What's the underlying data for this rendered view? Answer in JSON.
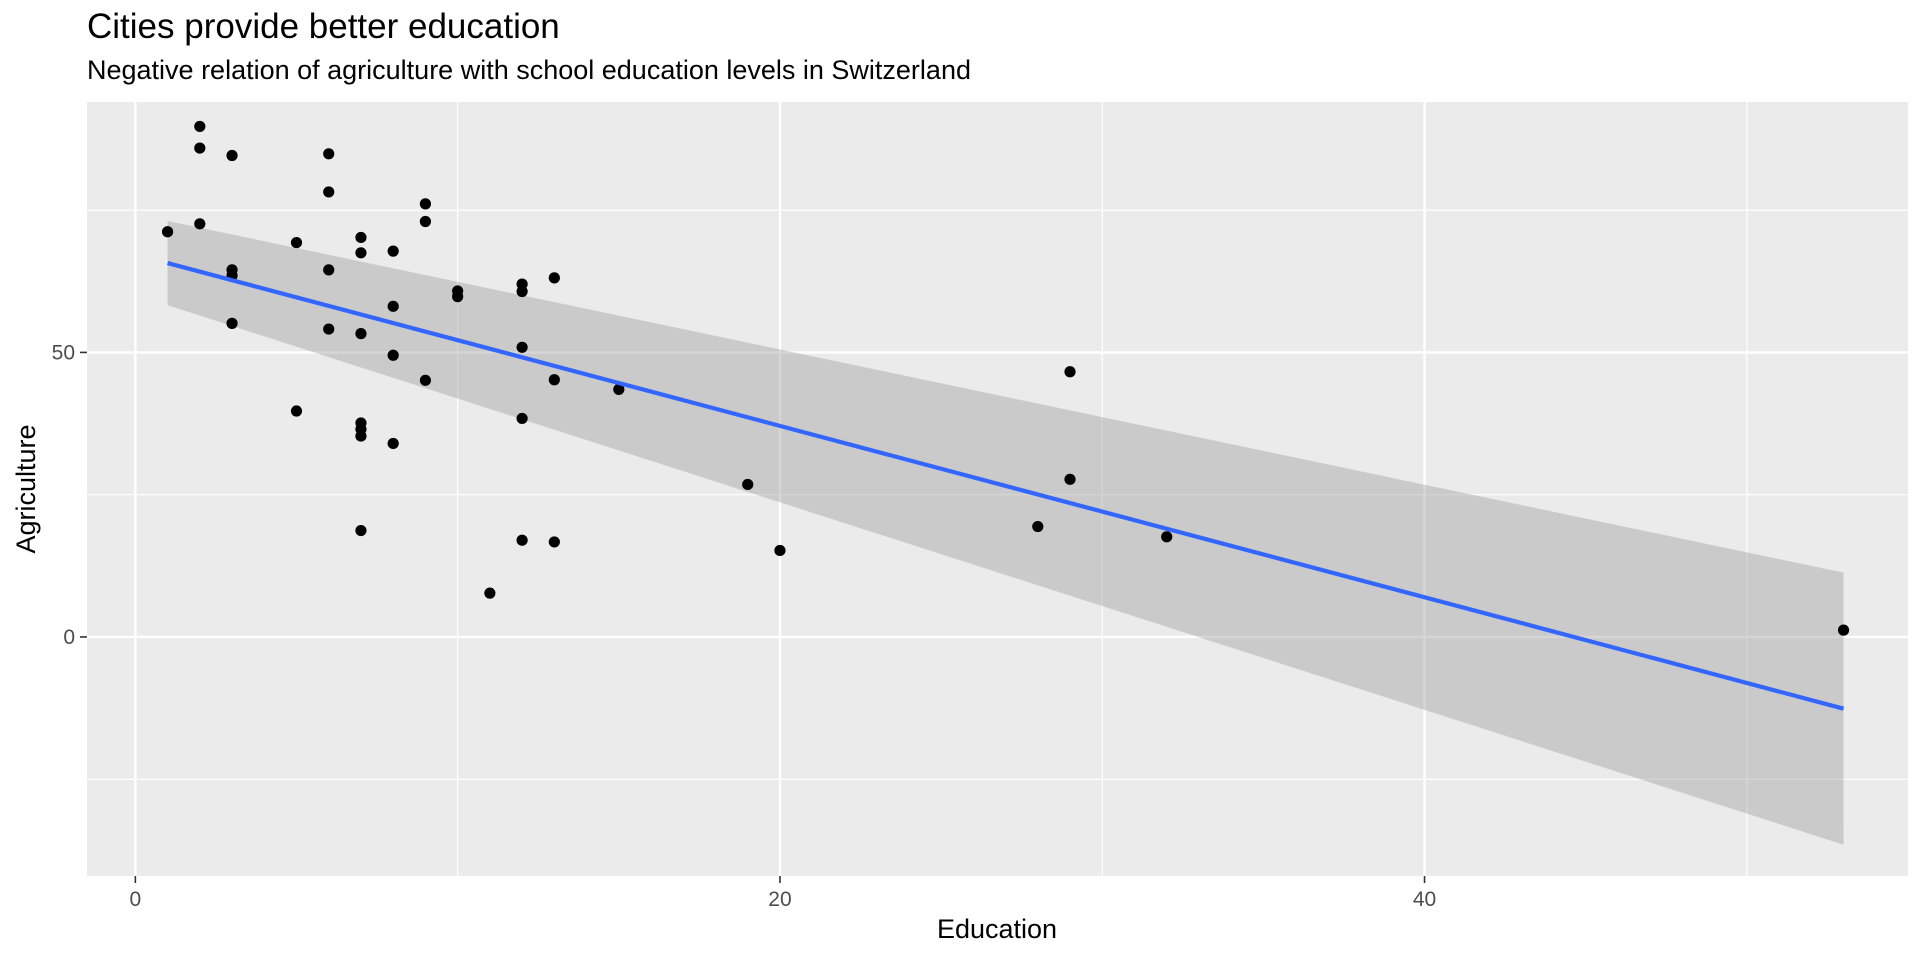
{
  "chart_data": {
    "type": "scatter",
    "title": "Cities provide better education",
    "subtitle": "Negative relation of agriculture with school education levels in Switzerland",
    "xlabel": "Education",
    "ylabel": "Agriculture",
    "xlim": [
      -1.5,
      55.0
    ],
    "ylim": [
      -42,
      94
    ],
    "x_ticks": [
      0,
      20,
      40
    ],
    "x_minor_ticks": [
      10,
      30,
      50
    ],
    "y_ticks": [
      0,
      50
    ],
    "y_minor_ticks": [
      -25,
      25,
      75
    ],
    "grid": true,
    "legend": "none",
    "points": [
      {
        "x": 12,
        "y": 17.0
      },
      {
        "x": 9,
        "y": 45.1
      },
      {
        "x": 5,
        "y": 39.7
      },
      {
        "x": 7,
        "y": 36.5
      },
      {
        "x": 15,
        "y": 43.5
      },
      {
        "x": 7,
        "y": 35.3
      },
      {
        "x": 7,
        "y": 70.2
      },
      {
        "x": 8,
        "y": 67.8
      },
      {
        "x": 7,
        "y": 53.3
      },
      {
        "x": 13,
        "y": 45.2
      },
      {
        "x": 6,
        "y": 64.5
      },
      {
        "x": 12,
        "y": 62.0
      },
      {
        "x": 7,
        "y": 67.5
      },
      {
        "x": 12,
        "y": 60.7
      },
      {
        "x": 5,
        "y": 69.3
      },
      {
        "x": 2,
        "y": 72.6
      },
      {
        "x": 8,
        "y": 34.0
      },
      {
        "x": 28,
        "y": 19.4
      },
      {
        "x": 20,
        "y": 15.2
      },
      {
        "x": 9,
        "y": 73.0
      },
      {
        "x": 10,
        "y": 59.8
      },
      {
        "x": 3,
        "y": 55.1
      },
      {
        "x": 12,
        "y": 50.9
      },
      {
        "x": 6,
        "y": 54.1
      },
      {
        "x": 1,
        "y": 71.2
      },
      {
        "x": 8,
        "y": 58.1
      },
      {
        "x": 3,
        "y": 63.5
      },
      {
        "x": 10,
        "y": 60.8
      },
      {
        "x": 19,
        "y": 26.8
      },
      {
        "x": 8,
        "y": 49.5
      },
      {
        "x": 2,
        "y": 85.9
      },
      {
        "x": 6,
        "y": 84.9
      },
      {
        "x": 2,
        "y": 89.7
      },
      {
        "x": 6,
        "y": 78.2
      },
      {
        "x": 9,
        "y": 76.1
      },
      {
        "x": 3,
        "y": 84.6
      },
      {
        "x": 3,
        "y": 64.5
      },
      {
        "x": 7,
        "y": 18.7
      },
      {
        "x": 13,
        "y": 16.7
      },
      {
        "x": 12,
        "y": 38.4
      },
      {
        "x": 11,
        "y": 7.7
      },
      {
        "x": 13,
        "y": 63.1
      },
      {
        "x": 32,
        "y": 17.6
      },
      {
        "x": 7,
        "y": 37.6
      },
      {
        "x": 53,
        "y": 1.2
      },
      {
        "x": 29,
        "y": 46.6
      },
      {
        "x": 29,
        "y": 27.7
      }
    ],
    "fit": {
      "method": "lm",
      "x": [
        1,
        53
      ],
      "y": [
        65.7,
        -12.6
      ],
      "ci_lower": [
        58.3,
        -36.5
      ],
      "ci_upper": [
        73.1,
        11.3
      ]
    },
    "colors": {
      "panel": "#ebebeb",
      "grid": "#ffffff",
      "points": "#000000",
      "line": "#3366ff",
      "ribbon": "#999999"
    }
  }
}
